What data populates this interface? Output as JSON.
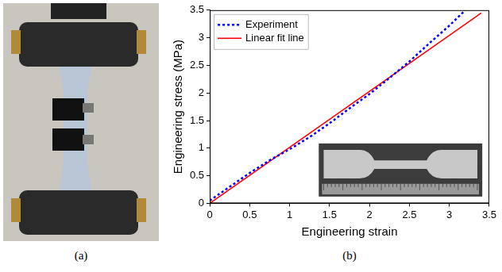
{
  "panel_labels": [
    "(a)",
    "(b)"
  ],
  "chart_data": {
    "type": "line",
    "x_label": "Engineering strain",
    "y_label": "Engineering stress (MPa)",
    "xlim": [
      0,
      3.5
    ],
    "ylim": [
      0,
      3.5
    ],
    "xticks": [
      0,
      0.5,
      1,
      1.5,
      2,
      2.5,
      3,
      3.5
    ],
    "yticks": [
      0,
      0.5,
      1,
      1.5,
      2,
      2.5,
      3,
      3.5
    ],
    "grid": false,
    "legend": "top-left",
    "series": [
      {
        "name": "Experiment",
        "color": "#0000ff",
        "line_style": "dotted",
        "x": [
          0,
          0.25,
          0.5,
          0.75,
          1,
          1.25,
          1.5,
          1.75,
          2,
          2.25,
          2.5,
          2.75,
          3,
          3.2
        ],
        "values": [
          0.05,
          0.3,
          0.55,
          0.78,
          0.98,
          1.2,
          1.45,
          1.72,
          1.98,
          2.27,
          2.57,
          2.9,
          3.22,
          3.5
        ]
      },
      {
        "name": "Linear fit line",
        "color": "#ff0000",
        "line_style": "solid",
        "x": [
          0,
          3.4
        ],
        "values": [
          0,
          3.45
        ]
      }
    ]
  }
}
